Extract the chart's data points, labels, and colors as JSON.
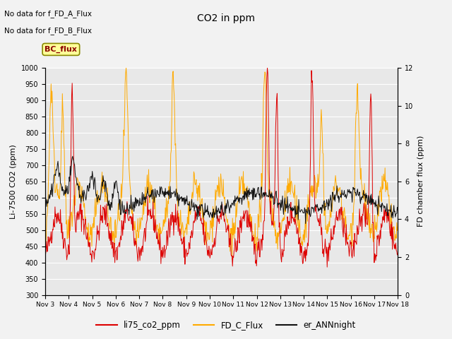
{
  "title": "CO2 in ppm",
  "ylabel_left": "Li-7500 CO2 (ppm)",
  "ylabel_right": "FD chamber flux (ppm)",
  "ylim_left": [
    300,
    1000
  ],
  "ylim_right": [
    0,
    12
  ],
  "xtick_labels": [
    "Nov 3",
    "Nov 4",
    "Nov 5",
    "Nov 6",
    "Nov 7",
    "Nov 8",
    "Nov 9",
    "Nov 10",
    "Nov 11",
    "Nov 12",
    "Nov 13",
    "Nov 14",
    "Nov 15",
    "Nov 16",
    "Nov 17",
    "Nov 18"
  ],
  "no_data_text": [
    "No data for f_FD_A_Flux",
    "No data for f_FD_B_Flux"
  ],
  "legend_box_text": "BC_flux",
  "legend_entries": [
    "li75_co2_ppm",
    "FD_C_Flux",
    "er_ANNnight"
  ],
  "colors": {
    "li75": "#dd0000",
    "fd_c": "#ffaa00",
    "ann": "#111111"
  },
  "plot_bg": "#e8e8e8",
  "fig_bg": "#f2f2f2",
  "grid_color": "#ffffff",
  "yticks_left": [
    300,
    350,
    400,
    450,
    500,
    550,
    600,
    650,
    700,
    750,
    800,
    850,
    900,
    950,
    1000
  ],
  "yticks_right": [
    0,
    2,
    4,
    6,
    8,
    10,
    12
  ]
}
